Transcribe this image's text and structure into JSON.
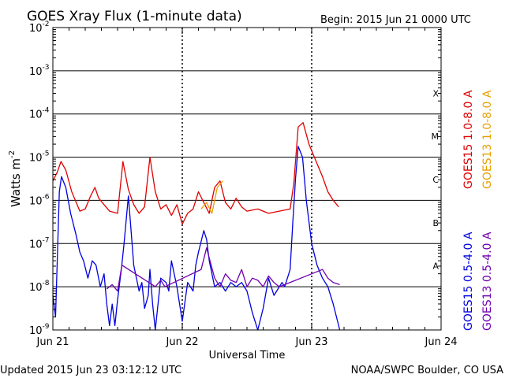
{
  "chart_data": {
    "type": "line",
    "title": "GOES Xray Flux (1-minute data)",
    "begin_label": "Begin:  2015 Jun 21 0000 UTC",
    "ylabel": "Watts m",
    "ylabel_exponent": "-2",
    "xlabel": "Universal Time",
    "x_unit": "hours since 2015 Jun 21 0000 UTC",
    "xlim": [
      0,
      72
    ],
    "ylim_log10": [
      -9,
      -2
    ],
    "x_ticks": [
      {
        "hour": 0,
        "label": "Jun 21"
      },
      {
        "hour": 24,
        "label": "Jun 22"
      },
      {
        "hour": 48,
        "label": "Jun 23"
      },
      {
        "hour": 72,
        "label": "Jun 24"
      }
    ],
    "y_ticks": [
      {
        "exp": -9,
        "base": "10",
        "sup": "-9"
      },
      {
        "exp": -8,
        "base": "10",
        "sup": "-8"
      },
      {
        "exp": -7,
        "base": "10",
        "sup": "-7"
      },
      {
        "exp": -6,
        "base": "10",
        "sup": "-6"
      },
      {
        "exp": -5,
        "base": "10",
        "sup": "-5"
      },
      {
        "exp": -4,
        "base": "10",
        "sup": "-4"
      },
      {
        "exp": -3,
        "base": "10",
        "sup": "-3"
      },
      {
        "exp": -2,
        "base": "10",
        "sup": "-2"
      }
    ],
    "flare_classes": [
      {
        "label": "X",
        "exp": -4
      },
      {
        "label": "M",
        "exp": -5
      },
      {
        "label": "C",
        "exp": -6
      },
      {
        "label": "B",
        "exp": -7
      },
      {
        "label": "A",
        "exp": -8
      }
    ],
    "series": [
      {
        "name": "GOES15 1.0-8.0 A",
        "color": "#e00000",
        "x": [
          0,
          0.8,
          1.5,
          2.4,
          3.5,
          5,
          6,
          7,
          7.8,
          8.5,
          9.5,
          10.5,
          12,
          13,
          14,
          15,
          16,
          17,
          18,
          19,
          20,
          21,
          22,
          23,
          24,
          25,
          26,
          27,
          28,
          29,
          30,
          31,
          32,
          33,
          34,
          35,
          36,
          38,
          40,
          42,
          44,
          44.7,
          45.5,
          46.4,
          47.5,
          48.5,
          50,
          51,
          52,
          53
        ],
        "logy": [
          -5.55,
          -5.35,
          -5.1,
          -5.3,
          -5.8,
          -6.25,
          -6.2,
          -5.9,
          -5.7,
          -5.95,
          -6.1,
          -6.25,
          -6.3,
          -5.1,
          -5.75,
          -6.1,
          -6.3,
          -6.15,
          -5.0,
          -5.8,
          -6.2,
          -6.1,
          -6.35,
          -6.1,
          -6.55,
          -6.3,
          -6.2,
          -5.8,
          -6.05,
          -6.3,
          -5.7,
          -5.55,
          -6.05,
          -6.2,
          -5.95,
          -6.15,
          -6.25,
          -6.2,
          -6.3,
          -6.25,
          -6.2,
          -5.6,
          -4.3,
          -4.2,
          -4.7,
          -5.0,
          -5.45,
          -5.8,
          -6.0,
          -6.15
        ]
      },
      {
        "name": "GOES13 1.0-8.0 A",
        "color": "#e8a000",
        "x": [
          27.5,
          28.5,
          29.5,
          30.5,
          31.5
        ],
        "logy": [
          -6.2,
          -6.05,
          -6.3,
          -5.7,
          -5.55
        ]
      },
      {
        "name": "GOES15 0.5-4.0 A",
        "color": "#0000e0",
        "x": [
          0,
          0.5,
          1.2,
          1.6,
          2.4,
          3.3,
          4.3,
          5,
          5.7,
          6.5,
          7.3,
          8,
          8.8,
          9.5,
          10,
          10.5,
          11,
          11.5,
          12,
          12.7,
          13.2,
          14,
          15,
          16,
          16.5,
          17,
          17.7,
          18,
          18.5,
          19,
          20,
          21,
          21.5,
          22,
          23,
          24,
          25,
          26,
          26.5,
          27,
          28,
          28.5,
          29,
          30,
          31,
          32,
          33,
          34,
          35,
          36,
          37,
          38,
          39,
          40,
          41,
          42,
          42.5,
          43,
          44,
          44.5,
          45,
          45.5,
          46.3,
          47,
          48,
          49,
          50,
          51,
          52,
          53,
          53.2
        ],
        "logy": [
          -8.2,
          -8.7,
          -5.8,
          -5.45,
          -5.7,
          -6.3,
          -6.8,
          -7.2,
          -7.4,
          -7.8,
          -7.4,
          -7.5,
          -8.0,
          -7.7,
          -8.4,
          -8.9,
          -8.4,
          -8.9,
          -8.3,
          -7.6,
          -7.0,
          -5.9,
          -7.5,
          -8.1,
          -7.9,
          -8.5,
          -8.2,
          -7.6,
          -8.4,
          -9.0,
          -7.8,
          -7.9,
          -8.1,
          -7.4,
          -8.0,
          -8.8,
          -7.9,
          -8.1,
          -7.5,
          -7.2,
          -6.7,
          -6.9,
          -7.4,
          -8.0,
          -7.9,
          -8.1,
          -7.9,
          -8.0,
          -7.9,
          -8.1,
          -8.6,
          -9.0,
          -8.5,
          -7.8,
          -8.2,
          -8.0,
          -7.9,
          -8.0,
          -7.6,
          -6.5,
          -5.5,
          -4.75,
          -5.0,
          -6.0,
          -7.0,
          -7.5,
          -7.8,
          -8.0,
          -8.4,
          -8.9,
          -9.0
        ]
      },
      {
        "name": "GOES13 0.5-4.0 A",
        "color": "#7000b0",
        "x": [
          10,
          11,
          12,
          12.8,
          17.8,
          19,
          20,
          20.8,
          27.5,
          28.5,
          30,
          31,
          32,
          33,
          34,
          35,
          36,
          37,
          38,
          39,
          40,
          41,
          42,
          50,
          51,
          52,
          53.2
        ],
        "logy": [
          -8.05,
          -7.95,
          -8.1,
          -7.5,
          -7.9,
          -8.0,
          -7.85,
          -8.0,
          -7.6,
          -7.1,
          -7.8,
          -8.0,
          -7.7,
          -7.85,
          -7.9,
          -7.6,
          -8.0,
          -7.8,
          -7.85,
          -8.0,
          -7.75,
          -7.9,
          -8.0,
          -7.6,
          -7.8,
          -7.9,
          -7.95
        ]
      }
    ],
    "legend_placement": "right, vertical text"
  },
  "footer": {
    "updated": "Updated 2015 Jun 23 03:12:12 UTC",
    "credit": "NOAA/SWPC Boulder, CO USA"
  }
}
